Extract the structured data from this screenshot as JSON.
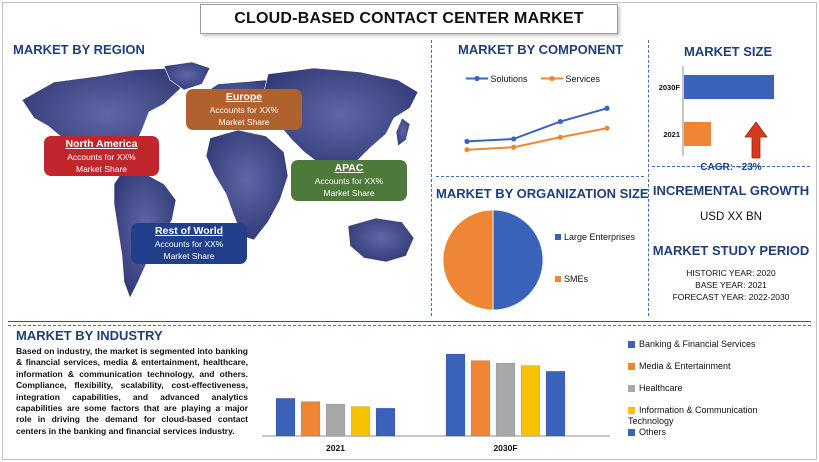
{
  "title": "CLOUD-BASED CONTACT CENTER MARKET",
  "region": {
    "heading": "MARKET BY REGION",
    "regions": [
      {
        "name": "North America",
        "text1": "Accounts for XX%",
        "text2": "Market Share",
        "color": "#c0262c"
      },
      {
        "name": "Europe",
        "text1": "Accounts for XX%",
        "text2": "Market Share",
        "color": "#b0622e"
      },
      {
        "name": "APAC",
        "text1": "Accounts for XX%",
        "text2": "Market Share",
        "color": "#4d7a3a"
      },
      {
        "name": "Rest of World",
        "text1": "Accounts for XX%",
        "text2": "Market Share",
        "color": "#213f8a"
      }
    ]
  },
  "component": {
    "heading": "MARKET BY COMPONENT"
  },
  "organization": {
    "heading": "MARKET BY ORGANIZATION SIZE"
  },
  "market_size": {
    "heading": "MARKET SIZE",
    "cagr": "CAGR:  ~23%"
  },
  "growth": {
    "heading": "INCREMENTAL GROWTH",
    "value": "USD XX BN"
  },
  "study": {
    "heading": "MARKET STUDY PERIOD",
    "historic": "HISTORIC YEAR: 2020",
    "base": "BASE YEAR: 2021",
    "forecast": "FORECAST YEAR: 2022-2030"
  },
  "industry": {
    "heading": "MARKET BY INDUSTRY",
    "paragraph": "Based on industry, the market is segmented into banking & financial services, media & entertainment, healthcare, information & communication technology, and others. Compliance, flexibility, scalability, cost-effectiveness, integration capabilities, and advanced analytics capabilities are some factors that are playing a major role in driving the demand for cloud-based contact centers in the banking and financial services industry."
  },
  "colors": {
    "blue": "#3a62b8",
    "orange": "#ef8634",
    "gray": "#a8a8a8",
    "yellow": "#f7c300",
    "navy": "#1f3f7a",
    "red": "#d63a1e"
  },
  "chart_data": [
    {
      "id": "component",
      "type": "line",
      "x": [
        1,
        2,
        3,
        4
      ],
      "series": [
        {
          "name": "Solutions",
          "values": [
            2.0,
            2.3,
            4.4,
            6.0
          ]
        },
        {
          "name": "Services",
          "values": [
            1.0,
            1.3,
            2.5,
            3.6
          ]
        }
      ],
      "ylim": [
        0,
        7
      ]
    },
    {
      "id": "organization",
      "type": "pie",
      "labels": [
        "Large Enterprises",
        "SMEs"
      ],
      "values": [
        50,
        50
      ]
    },
    {
      "id": "market_size",
      "type": "bar",
      "orientation": "horizontal",
      "categories": [
        "2030F",
        "2021"
      ],
      "values": [
        100,
        30
      ]
    },
    {
      "id": "industry",
      "type": "bar",
      "categories": [
        "2021",
        "2030F"
      ],
      "series": [
        {
          "name": "Banking & Financial Services",
          "values": [
            46,
            100
          ]
        },
        {
          "name": "Media & Entertainment",
          "values": [
            42,
            92
          ]
        },
        {
          "name": "Healthcare",
          "values": [
            39,
            89
          ]
        },
        {
          "name": "Information & Communication Technology",
          "values": [
            36,
            86
          ]
        },
        {
          "name": "Others",
          "values": [
            34,
            79
          ]
        }
      ]
    }
  ]
}
